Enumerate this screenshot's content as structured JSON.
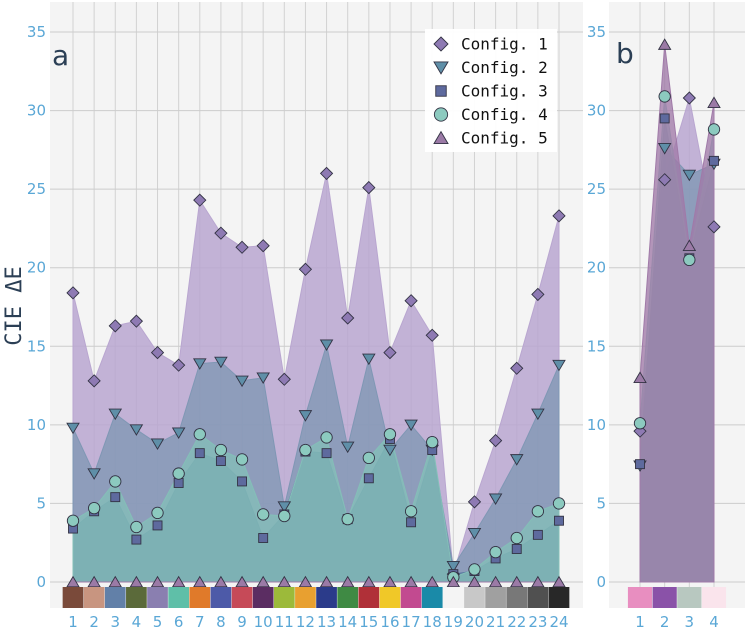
{
  "chart_data": [
    {
      "panel": "a",
      "type": "area",
      "ylabel": "CIE ΔE",
      "ylim": [
        0,
        35
      ],
      "yticks": [
        0,
        5,
        10,
        15,
        20,
        25,
        30,
        35
      ],
      "categories": [
        "1",
        "2",
        "3",
        "4",
        "5",
        "6",
        "7",
        "8",
        "9",
        "10",
        "11",
        "12",
        "13",
        "14",
        "15",
        "16",
        "17",
        "18",
        "19",
        "20",
        "21",
        "22",
        "23",
        "24"
      ],
      "swatches": [
        "#7a4a3a",
        "#c89580",
        "#6280a8",
        "#5b6a3a",
        "#8a7fb0",
        "#5fbfa8",
        "#e07a2a",
        "#4d5aa8",
        "#c64a58",
        "#5b2d62",
        "#9cba3a",
        "#e8a030",
        "#2b3b8a",
        "#3f8a44",
        "#b03038",
        "#f0c828",
        "#c24a90",
        "#1a8aa8",
        "#f4f4f4",
        "#c8c8c8",
        "#a0a0a0",
        "#787878",
        "#505050",
        "#282828"
      ],
      "series": [
        {
          "name": "Config. 1",
          "marker": "diamond",
          "fill": "#b9a6d0",
          "marker_color": "#8e7ab3",
          "values": [
            18.4,
            12.8,
            16.3,
            16.6,
            14.6,
            13.8,
            24.3,
            22.2,
            21.3,
            21.4,
            12.9,
            19.9,
            26.0,
            16.8,
            25.1,
            14.6,
            17.9,
            15.7,
            0.5,
            5.1,
            9.0,
            13.6,
            18.3,
            23.3
          ]
        },
        {
          "name": "Config. 2",
          "marker": "triangle-down",
          "fill": "#7f97b4",
          "marker_color": "#5f8fa8",
          "values": [
            9.8,
            6.9,
            10.7,
            9.7,
            8.8,
            9.5,
            13.9,
            14.0,
            12.8,
            13.0,
            4.8,
            10.6,
            15.1,
            8.6,
            14.2,
            8.4,
            10.0,
            8.4,
            1.0,
            3.1,
            5.3,
            7.8,
            10.7,
            13.8
          ]
        },
        {
          "name": "Config. 3",
          "marker": "square",
          "fill": "#5a7aa0",
          "marker_color": "#5e6a9e",
          "values": [
            3.4,
            4.5,
            5.4,
            2.7,
            3.6,
            6.3,
            8.2,
            7.7,
            6.4,
            2.8,
            4.3,
            8.3,
            8.2,
            4.0,
            6.6,
            9.1,
            3.8,
            8.4,
            0.5,
            0.7,
            1.5,
            2.1,
            3.0,
            3.9
          ]
        },
        {
          "name": "Config. 4",
          "marker": "circle",
          "fill": "#84bfb8",
          "marker_color": "#8ccabf",
          "values": [
            3.9,
            4.7,
            6.4,
            3.5,
            4.4,
            6.9,
            9.4,
            8.4,
            7.8,
            4.3,
            4.2,
            8.4,
            9.2,
            4.0,
            7.9,
            9.4,
            4.5,
            8.9,
            0.3,
            0.8,
            1.9,
            2.8,
            4.5,
            5.0
          ]
        },
        {
          "name": "Config. 5",
          "marker": "triangle-up",
          "fill": "#a07aa8",
          "marker_color": "#9b7aa6",
          "values": [
            0,
            0,
            0,
            0,
            0,
            0,
            0,
            0,
            0,
            0,
            0,
            0,
            0,
            0,
            0,
            0,
            0,
            0,
            0,
            0,
            0,
            0,
            0,
            0
          ]
        }
      ]
    },
    {
      "panel": "b",
      "type": "area",
      "ylabel": "",
      "ylim": [
        0,
        35
      ],
      "yticks": [
        0,
        5,
        10,
        15,
        20,
        25,
        30,
        35
      ],
      "categories": [
        "1",
        "2",
        "3",
        "4"
      ],
      "swatches": [
        "#e88ec0",
        "#8a52a8",
        "#b8c8c0",
        "#fae4ec"
      ],
      "series": [
        {
          "name": "Config. 1",
          "marker": "diamond",
          "fill": "#b9a6d0",
          "marker_color": "#8e7ab3",
          "values": [
            9.6,
            25.6,
            30.8,
            22.6
          ]
        },
        {
          "name": "Config. 2",
          "marker": "triangle-down",
          "fill": "#7f97b4",
          "marker_color": "#5f8fa8",
          "values": [
            7.4,
            27.6,
            25.9,
            26.6
          ]
        },
        {
          "name": "Config. 3",
          "marker": "square",
          "fill": "#5a7aa0",
          "marker_color": "#5e6a9e",
          "values": [
            7.5,
            29.5,
            20.6,
            26.8
          ]
        },
        {
          "name": "Config. 4",
          "marker": "circle",
          "fill": "#84bfb8",
          "marker_color": "#8ccabf",
          "values": [
            10.1,
            30.9,
            20.5,
            28.8
          ]
        },
        {
          "name": "Config. 5",
          "marker": "triangle-up",
          "fill": "#a07aa8",
          "marker_color": "#9b7aa6",
          "values": [
            13.0,
            34.2,
            21.4,
            30.5
          ]
        }
      ]
    }
  ]
}
